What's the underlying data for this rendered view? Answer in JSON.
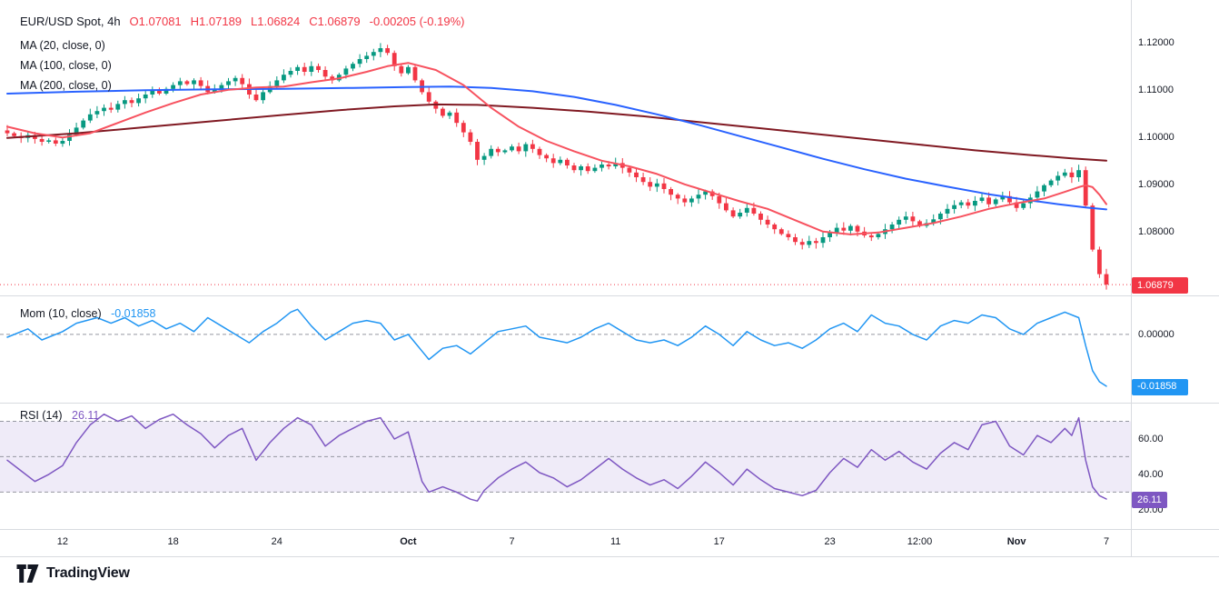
{
  "header": {
    "symbol": "EUR/USD Spot, 4h",
    "ohlc": {
      "open": "O1.07081",
      "high": "H1.07189",
      "low": "L1.06824",
      "close": "C1.06879",
      "change": "-0.00205 (-0.19%)"
    }
  },
  "legends": {
    "ma20": "MA (20, close, 0)",
    "ma100": "MA (100, close, 0)",
    "ma200": "MA (200, close, 0)",
    "mom": "Mom (10, close)",
    "mom_value": "-0.01858",
    "rsi": "RSI (14)",
    "rsi_value": "26.11"
  },
  "axes": {
    "price_ticks": [
      "1.12000",
      "1.11000",
      "1.10000",
      "1.09000",
      "1.08000"
    ],
    "price_badge": "1.06879",
    "mom_ticks": [
      "0.00000"
    ],
    "mom_badge": "-0.01858",
    "rsi_ticks": [
      "60.00",
      "40.00",
      "20.00"
    ],
    "rsi_badge": "26.11"
  },
  "footer": {
    "logo_text": "TradingView"
  },
  "colors": {
    "up": "#089981",
    "down": "#f23645",
    "ma20": "#f7525f",
    "ma100": "#2962ff",
    "ma200": "#801922",
    "mom": "#2196f3",
    "rsi": "#7e57c2",
    "rsi_band": "rgba(126,87,194,0.12)",
    "level": "#9598a1",
    "separator": "#d8dbe0",
    "text": "#131722"
  },
  "chart_data": {
    "type": "candlestick",
    "title": "EUR/USD Spot, 4h",
    "n": 160,
    "time_ticks": [
      {
        "i": 8,
        "label": "12"
      },
      {
        "i": 24,
        "label": "18"
      },
      {
        "i": 39,
        "label": "24"
      },
      {
        "i": 58,
        "label": "Oct",
        "bold": true
      },
      {
        "i": 73,
        "label": "7"
      },
      {
        "i": 88,
        "label": "11"
      },
      {
        "i": 103,
        "label": "17"
      },
      {
        "i": 119,
        "label": "23"
      },
      {
        "i": 132,
        "label": "12:00"
      },
      {
        "i": 146,
        "label": "Nov",
        "bold": true
      },
      {
        "i": 159,
        "label": "7"
      }
    ],
    "price": {
      "ylim": [
        1.0665,
        1.129
      ],
      "last": 1.06879,
      "closes": [
        1.1008,
        1.1002,
        1.0998,
        1.1004,
        1.0996,
        1.099,
        1.0993,
        1.0986,
        1.0992,
        1.1005,
        1.102,
        1.1035,
        1.1048,
        1.1055,
        1.1062,
        1.1058,
        1.107,
        1.1078,
        1.1072,
        1.1082,
        1.109,
        1.1098,
        1.1092,
        1.1102,
        1.111,
        1.1118,
        1.1112,
        1.112,
        1.1108,
        1.1095,
        1.1102,
        1.111,
        1.1118,
        1.1125,
        1.1112,
        1.109,
        1.1078,
        1.1095,
        1.1108,
        1.112,
        1.1132,
        1.114,
        1.1148,
        1.1138,
        1.115,
        1.1142,
        1.1128,
        1.112,
        1.1132,
        1.1145,
        1.1155,
        1.1165,
        1.1172,
        1.118,
        1.1188,
        1.1178,
        1.115,
        1.1135,
        1.1148,
        1.112,
        1.1095,
        1.1075,
        1.106,
        1.1045,
        1.1052,
        1.103,
        1.101,
        1.099,
        1.0952,
        1.096,
        1.0975,
        1.0968,
        1.0972,
        1.098,
        1.097,
        1.0985,
        1.0975,
        1.0962,
        1.0955,
        1.0945,
        1.0952,
        1.094,
        1.093,
        1.0938,
        1.0928,
        1.0935,
        1.0942,
        1.0938,
        1.0945,
        1.0935,
        1.0925,
        1.0915,
        1.0905,
        1.0895,
        1.0902,
        1.089,
        1.0878,
        1.087,
        1.0862,
        1.087,
        1.0878,
        1.0885,
        1.0875,
        1.086,
        1.0845,
        1.0832,
        1.084,
        1.085,
        1.0838,
        1.0825,
        1.0815,
        1.0805,
        1.0795,
        1.0788,
        1.0778,
        1.0772,
        1.078,
        1.0776,
        1.0788,
        1.0798,
        1.0808,
        1.0802,
        1.0812,
        1.08,
        1.0792,
        1.0788,
        1.0795,
        1.0805,
        1.0815,
        1.0825,
        1.0832,
        1.0822,
        1.0812,
        1.0818,
        1.0826,
        1.0838,
        1.0848,
        1.0856,
        1.0862,
        1.0855,
        1.0865,
        1.0872,
        1.0858,
        1.0868,
        1.0875,
        1.0862,
        1.085,
        1.086,
        1.0872,
        1.0885,
        1.0898,
        1.0908,
        1.0918,
        1.0925,
        1.0915,
        1.093,
        1.0855,
        1.0762,
        1.071,
        1.0688
      ],
      "ma20": [
        [
          0,
          1.1022
        ],
        [
          4,
          1.1008
        ],
        [
          8,
          1.0999
        ],
        [
          12,
          1.1008
        ],
        [
          16,
          1.103
        ],
        [
          20,
          1.1052
        ],
        [
          24,
          1.1072
        ],
        [
          28,
          1.109
        ],
        [
          32,
          1.11
        ],
        [
          36,
          1.1105
        ],
        [
          40,
          1.1107
        ],
        [
          44,
          1.1116
        ],
        [
          48,
          1.1124
        ],
        [
          52,
          1.1138
        ],
        [
          55,
          1.115
        ],
        [
          58,
          1.1157
        ],
        [
          62,
          1.1142
        ],
        [
          66,
          1.111
        ],
        [
          70,
          1.1062
        ],
        [
          74,
          1.1022
        ],
        [
          78,
          1.0992
        ],
        [
          82,
          1.097
        ],
        [
          86,
          1.095
        ],
        [
          90,
          1.0938
        ],
        [
          94,
          1.0922
        ],
        [
          98,
          1.09
        ],
        [
          102,
          1.0882
        ],
        [
          106,
          1.0864
        ],
        [
          110,
          1.0848
        ],
        [
          114,
          1.0824
        ],
        [
          118,
          1.08
        ],
        [
          122,
          1.0794
        ],
        [
          126,
          1.0798
        ],
        [
          130,
          1.0808
        ],
        [
          134,
          1.0818
        ],
        [
          138,
          1.0832
        ],
        [
          142,
          1.0848
        ],
        [
          146,
          1.086
        ],
        [
          150,
          1.087
        ],
        [
          153,
          1.0884
        ],
        [
          155,
          1.0894
        ],
        [
          156,
          1.0898
        ],
        [
          157,
          1.0894
        ],
        [
          158,
          1.0878
        ],
        [
          159,
          1.0858
        ]
      ],
      "ma100": [
        [
          0,
          1.1092
        ],
        [
          10,
          1.1096
        ],
        [
          20,
          1.1099
        ],
        [
          30,
          1.1101
        ],
        [
          40,
          1.1102
        ],
        [
          50,
          1.1104
        ],
        [
          58,
          1.1106
        ],
        [
          64,
          1.1107
        ],
        [
          70,
          1.1104
        ],
        [
          76,
          1.1097
        ],
        [
          82,
          1.1085
        ],
        [
          88,
          1.1068
        ],
        [
          94,
          1.1048
        ],
        [
          100,
          1.1026
        ],
        [
          106,
          1.1002
        ],
        [
          112,
          1.0978
        ],
        [
          118,
          1.0954
        ],
        [
          124,
          1.0932
        ],
        [
          130,
          1.0912
        ],
        [
          136,
          1.0895
        ],
        [
          142,
          1.0879
        ],
        [
          148,
          1.0866
        ],
        [
          152,
          1.0858
        ],
        [
          156,
          1.0851
        ],
        [
          159,
          1.0847
        ]
      ],
      "ma200": [
        [
          0,
          1.0998
        ],
        [
          10,
          1.1008
        ],
        [
          20,
          1.1021
        ],
        [
          30,
          1.1034
        ],
        [
          40,
          1.1047
        ],
        [
          48,
          1.1057
        ],
        [
          56,
          1.1065
        ],
        [
          62,
          1.1069
        ],
        [
          68,
          1.1068
        ],
        [
          76,
          1.1062
        ],
        [
          84,
          1.1054
        ],
        [
          92,
          1.1044
        ],
        [
          100,
          1.1032
        ],
        [
          108,
          1.102
        ],
        [
          116,
          1.1008
        ],
        [
          124,
          1.0996
        ],
        [
          132,
          1.0984
        ],
        [
          140,
          1.0972
        ],
        [
          148,
          1.0962
        ],
        [
          154,
          1.0955
        ],
        [
          159,
          1.095
        ]
      ]
    },
    "momentum": {
      "type": "line",
      "ylim": [
        -0.0245,
        0.014
      ],
      "zero_level": 0,
      "last": -0.01858,
      "points": [
        [
          0,
          -0.001
        ],
        [
          3,
          0.002
        ],
        [
          5,
          -0.002
        ],
        [
          8,
          0.001
        ],
        [
          10,
          0.004
        ],
        [
          13,
          0.006
        ],
        [
          15,
          0.004
        ],
        [
          17,
          0.006
        ],
        [
          19,
          0.003
        ],
        [
          21,
          0.005
        ],
        [
          23,
          0.002
        ],
        [
          25,
          0.004
        ],
        [
          27,
          0.001
        ],
        [
          29,
          0.006
        ],
        [
          31,
          0.003
        ],
        [
          33,
          0
        ],
        [
          35,
          -0.003
        ],
        [
          37,
          0.001
        ],
        [
          39,
          0.004
        ],
        [
          41,
          0.008
        ],
        [
          42,
          0.009
        ],
        [
          44,
          0.003
        ],
        [
          46,
          -0.002
        ],
        [
          48,
          0.001
        ],
        [
          50,
          0.004
        ],
        [
          52,
          0.005
        ],
        [
          54,
          0.004
        ],
        [
          56,
          -0.002
        ],
        [
          58,
          0
        ],
        [
          60,
          -0.006
        ],
        [
          61,
          -0.009
        ],
        [
          63,
          -0.005
        ],
        [
          65,
          -0.004
        ],
        [
          67,
          -0.007
        ],
        [
          69,
          -0.003
        ],
        [
          71,
          0.001
        ],
        [
          73,
          0.002
        ],
        [
          75,
          0.003
        ],
        [
          77,
          -0.001
        ],
        [
          79,
          -0.002
        ],
        [
          81,
          -0.003
        ],
        [
          83,
          -0.001
        ],
        [
          85,
          0.002
        ],
        [
          87,
          0.004
        ],
        [
          89,
          0.001
        ],
        [
          91,
          -0.002
        ],
        [
          93,
          -0.003
        ],
        [
          95,
          -0.002
        ],
        [
          97,
          -0.004
        ],
        [
          99,
          -0.001
        ],
        [
          101,
          0.003
        ],
        [
          103,
          0
        ],
        [
          105,
          -0.004
        ],
        [
          107,
          0.001
        ],
        [
          109,
          -0.002
        ],
        [
          111,
          -0.004
        ],
        [
          113,
          -0.003
        ],
        [
          115,
          -0.005
        ],
        [
          117,
          -0.002
        ],
        [
          119,
          0.002
        ],
        [
          121,
          0.004
        ],
        [
          123,
          0.001
        ],
        [
          125,
          0.007
        ],
        [
          127,
          0.004
        ],
        [
          129,
          0.003
        ],
        [
          131,
          0
        ],
        [
          133,
          -0.002
        ],
        [
          135,
          0.003
        ],
        [
          137,
          0.005
        ],
        [
          139,
          0.004
        ],
        [
          141,
          0.007
        ],
        [
          143,
          0.006
        ],
        [
          145,
          0.002
        ],
        [
          147,
          0
        ],
        [
          149,
          0.004
        ],
        [
          151,
          0.006
        ],
        [
          153,
          0.008
        ],
        [
          155,
          0.006
        ],
        [
          156,
          -0.004
        ],
        [
          157,
          -0.013
        ],
        [
          158,
          -0.017
        ],
        [
          159,
          -0.01858
        ]
      ]
    },
    "rsi": {
      "type": "line",
      "ylim": [
        9.7,
        80.5
      ],
      "band": [
        30,
        70
      ],
      "levels": [
        70,
        50,
        30
      ],
      "last": 26.11,
      "points": [
        [
          0,
          48
        ],
        [
          2,
          42
        ],
        [
          4,
          36
        ],
        [
          6,
          40
        ],
        [
          8,
          45
        ],
        [
          10,
          58
        ],
        [
          12,
          68
        ],
        [
          14,
          74
        ],
        [
          16,
          70
        ],
        [
          18,
          73
        ],
        [
          20,
          66
        ],
        [
          22,
          71
        ],
        [
          24,
          74
        ],
        [
          26,
          68
        ],
        [
          28,
          63
        ],
        [
          30,
          55
        ],
        [
          32,
          62
        ],
        [
          34,
          66
        ],
        [
          36,
          48
        ],
        [
          38,
          58
        ],
        [
          40,
          66
        ],
        [
          42,
          72
        ],
        [
          44,
          68
        ],
        [
          46,
          56
        ],
        [
          48,
          62
        ],
        [
          50,
          66
        ],
        [
          52,
          70
        ],
        [
          54,
          72
        ],
        [
          56,
          60
        ],
        [
          58,
          64
        ],
        [
          59,
          50
        ],
        [
          60,
          36
        ],
        [
          61,
          30
        ],
        [
          63,
          33
        ],
        [
          65,
          30
        ],
        [
          67,
          26
        ],
        [
          68,
          25
        ],
        [
          69,
          31
        ],
        [
          71,
          38
        ],
        [
          73,
          43
        ],
        [
          75,
          47
        ],
        [
          77,
          41
        ],
        [
          79,
          38
        ],
        [
          81,
          33
        ],
        [
          83,
          37
        ],
        [
          85,
          43
        ],
        [
          87,
          49
        ],
        [
          89,
          43
        ],
        [
          91,
          38
        ],
        [
          93,
          34
        ],
        [
          95,
          37
        ],
        [
          97,
          32
        ],
        [
          99,
          39
        ],
        [
          101,
          47
        ],
        [
          103,
          41
        ],
        [
          105,
          34
        ],
        [
          107,
          43
        ],
        [
          109,
          37
        ],
        [
          111,
          32
        ],
        [
          113,
          30
        ],
        [
          115,
          28
        ],
        [
          117,
          31
        ],
        [
          119,
          41
        ],
        [
          121,
          49
        ],
        [
          123,
          44
        ],
        [
          125,
          54
        ],
        [
          127,
          48
        ],
        [
          129,
          53
        ],
        [
          131,
          47
        ],
        [
          133,
          43
        ],
        [
          135,
          52
        ],
        [
          137,
          58
        ],
        [
          139,
          54
        ],
        [
          141,
          68
        ],
        [
          143,
          70
        ],
        [
          145,
          56
        ],
        [
          147,
          51
        ],
        [
          149,
          62
        ],
        [
          151,
          58
        ],
        [
          153,
          66
        ],
        [
          154,
          62
        ],
        [
          155,
          72
        ],
        [
          156,
          48
        ],
        [
          157,
          33
        ],
        [
          158,
          28
        ],
        [
          159,
          26.11
        ]
      ]
    }
  }
}
